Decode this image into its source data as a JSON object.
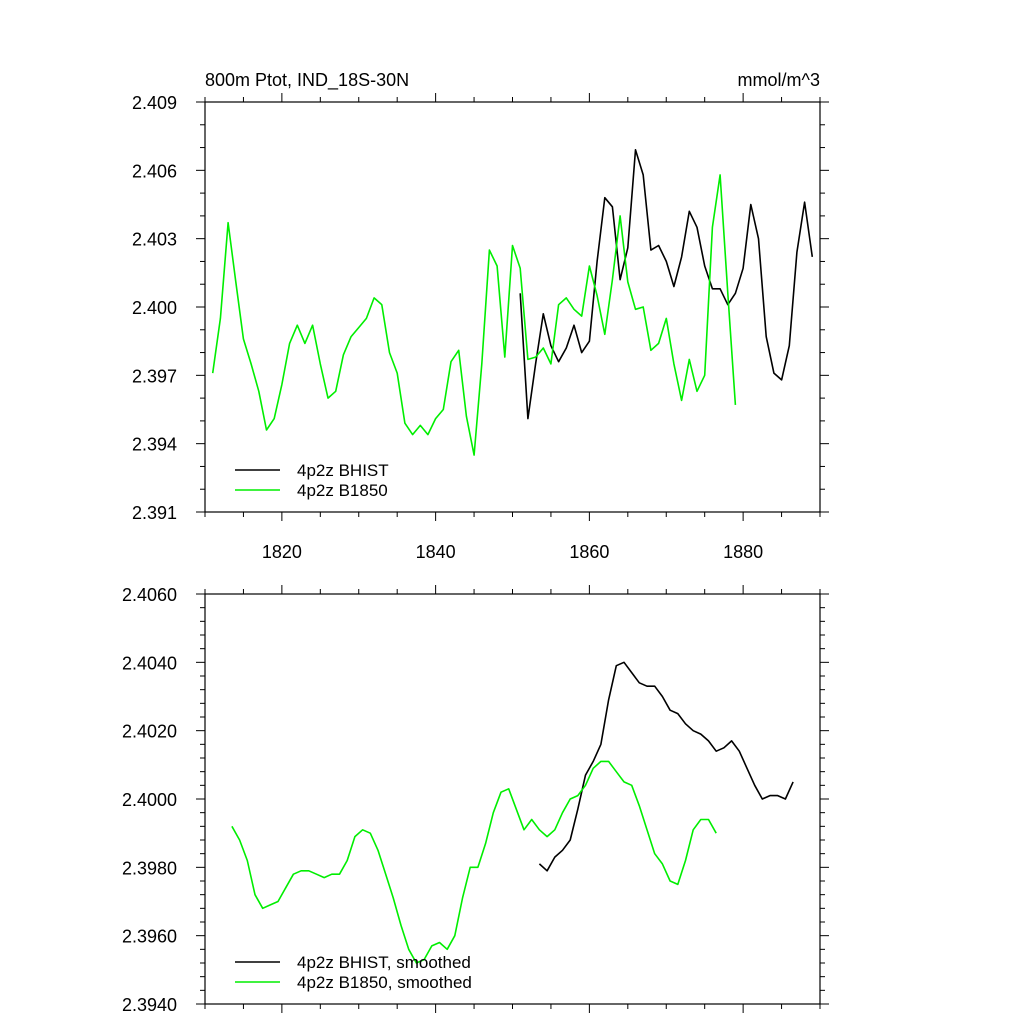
{
  "chart_data": [
    {
      "type": "line",
      "title": "800m Ptot, IND_18S-30N",
      "units": "mmol/m^3",
      "xlim": [
        1810,
        1890
      ],
      "ylim": [
        2.391,
        2.409
      ],
      "x_ticks": [
        1820,
        1840,
        1860,
        1880
      ],
      "y_ticks": [
        "2.391",
        "2.394",
        "2.397",
        "2.400",
        "2.403",
        "2.406",
        "2.409"
      ],
      "legend_position": "bottom-left",
      "series": [
        {
          "name": "4p2z BHIST",
          "color": "#000000",
          "x": [
            1851,
            1852,
            1853,
            1854,
            1855,
            1856,
            1857,
            1858,
            1859,
            1860,
            1861,
            1862,
            1863,
            1864,
            1865,
            1866,
            1867,
            1868,
            1869,
            1870,
            1871,
            1872,
            1873,
            1874,
            1875,
            1876,
            1877,
            1878,
            1879,
            1880,
            1881,
            1882,
            1883,
            1884,
            1885,
            1886,
            1887,
            1888,
            1889
          ],
          "y": [
            2.4006,
            2.3951,
            2.3975,
            2.3997,
            2.3983,
            2.3976,
            2.3982,
            2.3992,
            2.398,
            2.3985,
            2.402,
            2.4048,
            2.4044,
            2.4012,
            2.4026,
            2.4069,
            2.4058,
            2.4025,
            2.4027,
            2.402,
            2.4009,
            2.4022,
            2.4042,
            2.4035,
            2.4018,
            2.4008,
            2.4008,
            2.4001,
            2.4006,
            2.4017,
            2.4045,
            2.403,
            2.3987,
            2.3971,
            2.3968,
            2.3983,
            2.4024,
            2.4046,
            2.4022
          ]
        },
        {
          "name": "4p2z B1850",
          "color": "#00ee00",
          "x": [
            1811,
            1812,
            1813,
            1814,
            1815,
            1816,
            1817,
            1818,
            1819,
            1820,
            1821,
            1822,
            1823,
            1824,
            1825,
            1826,
            1827,
            1828,
            1829,
            1830,
            1831,
            1832,
            1833,
            1834,
            1835,
            1836,
            1837,
            1838,
            1839,
            1840,
            1841,
            1842,
            1843,
            1844,
            1845,
            1846,
            1847,
            1848,
            1849,
            1850,
            1851,
            1852,
            1853,
            1854,
            1855,
            1856,
            1857,
            1858,
            1859,
            1860,
            1861,
            1862,
            1863,
            1864,
            1865,
            1866,
            1867,
            1868,
            1869,
            1870,
            1871,
            1872,
            1873,
            1874,
            1875,
            1876,
            1877,
            1878,
            1879
          ],
          "y": [
            2.3971,
            2.3995,
            2.4037,
            2.4011,
            2.3986,
            2.3975,
            2.3963,
            2.3946,
            2.3951,
            2.3966,
            2.3984,
            2.3992,
            2.3984,
            2.3992,
            2.3975,
            2.396,
            2.3963,
            2.3979,
            2.3987,
            2.3991,
            2.3995,
            2.4004,
            2.4001,
            2.398,
            2.3971,
            2.3949,
            2.3944,
            2.3948,
            2.3944,
            2.3951,
            2.3955,
            2.3976,
            2.3981,
            2.3952,
            2.3935,
            2.3975,
            2.4025,
            2.4018,
            2.3978,
            2.4027,
            2.4017,
            2.3977,
            2.3978,
            2.3982,
            2.3975,
            2.4001,
            2.4004,
            2.3999,
            2.3996,
            2.4018,
            2.4005,
            2.3988,
            2.4012,
            2.404,
            2.4011,
            2.3999,
            2.4,
            2.3981,
            2.3984,
            2.3995,
            2.3975,
            2.3959,
            2.3977,
            2.3963,
            2.397,
            2.4035,
            2.4058,
            2.4006,
            2.3957
          ]
        }
      ]
    },
    {
      "type": "line",
      "xlim": [
        1810,
        1890
      ],
      "ylim": [
        2.394,
        2.406
      ],
      "x_ticks": [
        1820,
        1840,
        1860,
        1880
      ],
      "y_ticks": [
        "2.3940",
        "2.3960",
        "2.3980",
        "2.4000",
        "2.4020",
        "2.4040",
        "2.4060"
      ],
      "legend_position": "bottom-left",
      "series": [
        {
          "name": "4p2z BHIST, smoothed",
          "color": "#000000",
          "x": [
            1853.5,
            1854.5,
            1855.5,
            1856.5,
            1857.5,
            1858.5,
            1859.5,
            1860.5,
            1861.5,
            1862.5,
            1863.5,
            1864.5,
            1865.5,
            1866.5,
            1867.5,
            1868.5,
            1869.5,
            1870.5,
            1871.5,
            1872.5,
            1873.5,
            1874.5,
            1875.5,
            1876.5,
            1877.5,
            1878.5,
            1879.5,
            1880.5,
            1881.5,
            1882.5,
            1883.5,
            1884.5,
            1885.5,
            1886.5
          ],
          "y": [
            2.3981,
            2.3979,
            2.3983,
            2.3985,
            2.3988,
            2.3997,
            2.4007,
            2.4011,
            2.4016,
            2.4029,
            2.4039,
            2.404,
            2.4037,
            2.4034,
            2.4033,
            2.4033,
            2.403,
            2.4026,
            2.4025,
            2.4022,
            2.402,
            2.4019,
            2.4017,
            2.4014,
            2.4015,
            2.4017,
            2.4014,
            2.4009,
            2.4004,
            2.4,
            2.4001,
            2.4001,
            2.4,
            2.4005
          ]
        },
        {
          "name": "4p2z B1850, smoothed",
          "color": "#00ee00",
          "x": [
            1813.5,
            1814.5,
            1815.5,
            1816.5,
            1817.5,
            1818.5,
            1819.5,
            1820.5,
            1821.5,
            1822.5,
            1823.5,
            1824.5,
            1825.5,
            1826.5,
            1827.5,
            1828.5,
            1829.5,
            1830.5,
            1831.5,
            1832.5,
            1833.5,
            1834.5,
            1835.5,
            1836.5,
            1837.5,
            1838.5,
            1839.5,
            1840.5,
            1841.5,
            1842.5,
            1843.5,
            1844.5,
            1845.5,
            1846.5,
            1847.5,
            1848.5,
            1849.5,
            1850.5,
            1851.5,
            1852.5,
            1853.5,
            1854.5,
            1855.5,
            1856.5,
            1857.5,
            1858.5,
            1859.5,
            1860.5,
            1861.5,
            1862.5,
            1863.5,
            1864.5,
            1865.5,
            1866.5,
            1867.5,
            1868.5,
            1869.5,
            1870.5,
            1871.5,
            1872.5,
            1873.5,
            1874.5,
            1875.5,
            1876.5
          ],
          "y": [
            2.3992,
            2.3988,
            2.3982,
            2.3972,
            2.3968,
            2.3969,
            2.397,
            2.3974,
            2.3978,
            2.3979,
            2.3979,
            2.3978,
            2.3977,
            2.3978,
            2.3978,
            2.3982,
            2.3989,
            2.3991,
            2.399,
            2.3985,
            2.3978,
            2.3971,
            2.3963,
            2.3956,
            2.3952,
            2.3953,
            2.3957,
            2.3958,
            2.3956,
            2.396,
            2.3971,
            2.398,
            2.398,
            2.3987,
            2.3996,
            2.4002,
            2.4003,
            2.3997,
            2.3991,
            2.3994,
            2.3991,
            2.3989,
            2.3991,
            2.3996,
            2.4,
            2.4001,
            2.4004,
            2.4009,
            2.4011,
            2.4011,
            2.4008,
            2.4005,
            2.4004,
            2.3998,
            2.3991,
            2.3984,
            2.3981,
            2.3976,
            2.3975,
            2.3982,
            2.3991,
            2.3994,
            2.3994,
            2.399
          ]
        }
      ]
    }
  ]
}
